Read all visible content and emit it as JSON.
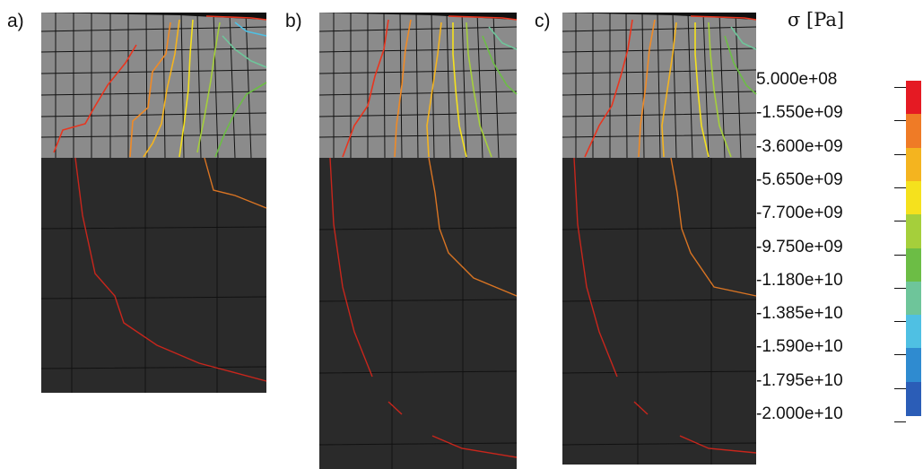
{
  "panels": [
    {
      "label": "a)"
    },
    {
      "label": "b)"
    },
    {
      "label": "c)"
    }
  ],
  "legend": {
    "title": "σ [Pa]",
    "ticks": [
      "5.000e+08",
      "-1.550e+09",
      "-3.600e+09",
      "-5.650e+09",
      "-7.700e+09",
      "-9.750e+09",
      "-1.180e+10",
      "-1.385e+10",
      "-1.590e+10",
      "-1.795e+10",
      "-2.000e+10"
    ],
    "colors": [
      "#e51a23",
      "#ef7b26",
      "#f4b41f",
      "#f5e11d",
      "#a5cf3b",
      "#6cbd45",
      "#6ec59a",
      "#4fc0e3",
      "#2f8bd0",
      "#2b5db7"
    ]
  },
  "colors": {
    "mesh_top": "#8b8b8b",
    "mesh_bottom": "#2a2a2a",
    "grid_line": "#111111"
  }
}
